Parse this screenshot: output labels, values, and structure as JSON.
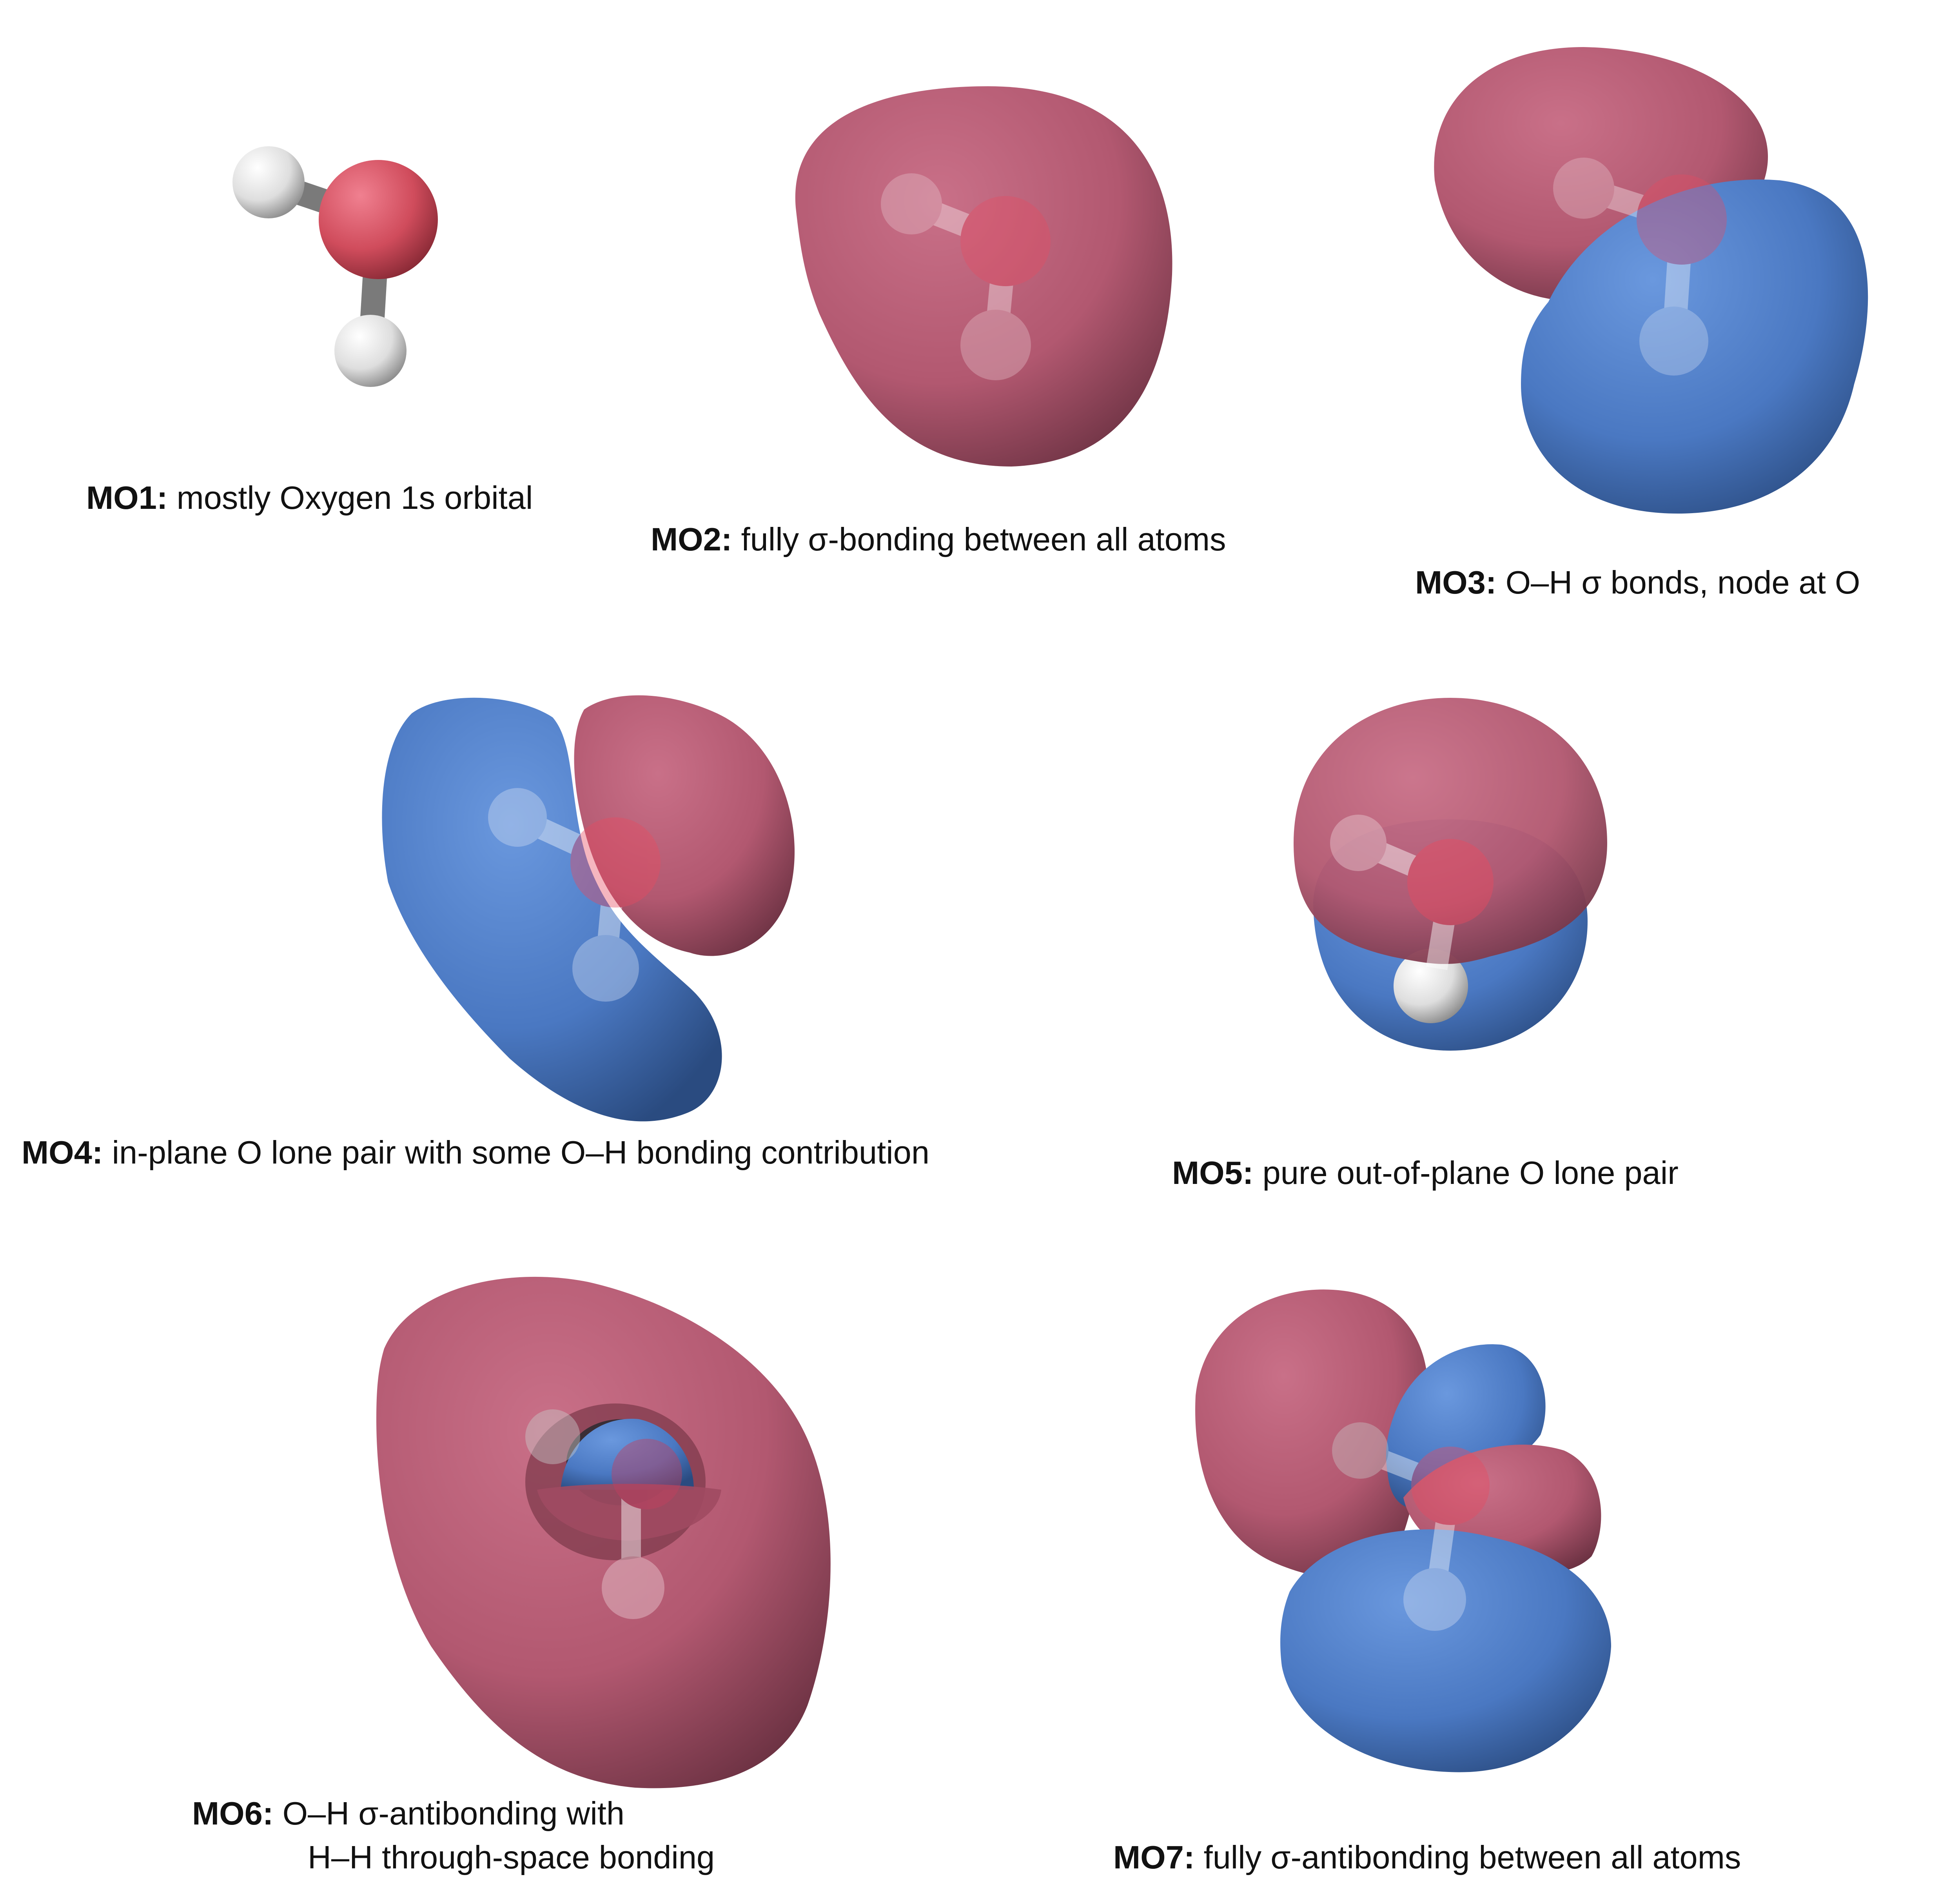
{
  "colors": {
    "positive_phase": "#b45a74",
    "negative_phase": "#4a7ac4",
    "oxygen": "#d4505e",
    "hydrogen": "#e4e4e4",
    "bond": "#8a8a8a"
  },
  "orbitals": [
    {
      "id": "MO1",
      "label": "MO1:",
      "description": "mostly Oxygen 1s orbital"
    },
    {
      "id": "MO2",
      "label": "MO2:",
      "description": "fully σ-bonding between all atoms"
    },
    {
      "id": "MO3",
      "label": "MO3:",
      "description": "O–H σ bonds, node at O"
    },
    {
      "id": "MO4",
      "label": "MO4:",
      "description": "in-plane O lone pair with some O–H bonding contribution"
    },
    {
      "id": "MO5",
      "label": "MO5:",
      "description": "pure out-of-plane O lone pair"
    },
    {
      "id": "MO6",
      "label": "MO6:",
      "description": "O–H σ-antibonding with",
      "description_line2": "H–H through-space bonding"
    },
    {
      "id": "MO7",
      "label": "MO7:",
      "description": "fully σ-antibonding between all atoms"
    }
  ]
}
